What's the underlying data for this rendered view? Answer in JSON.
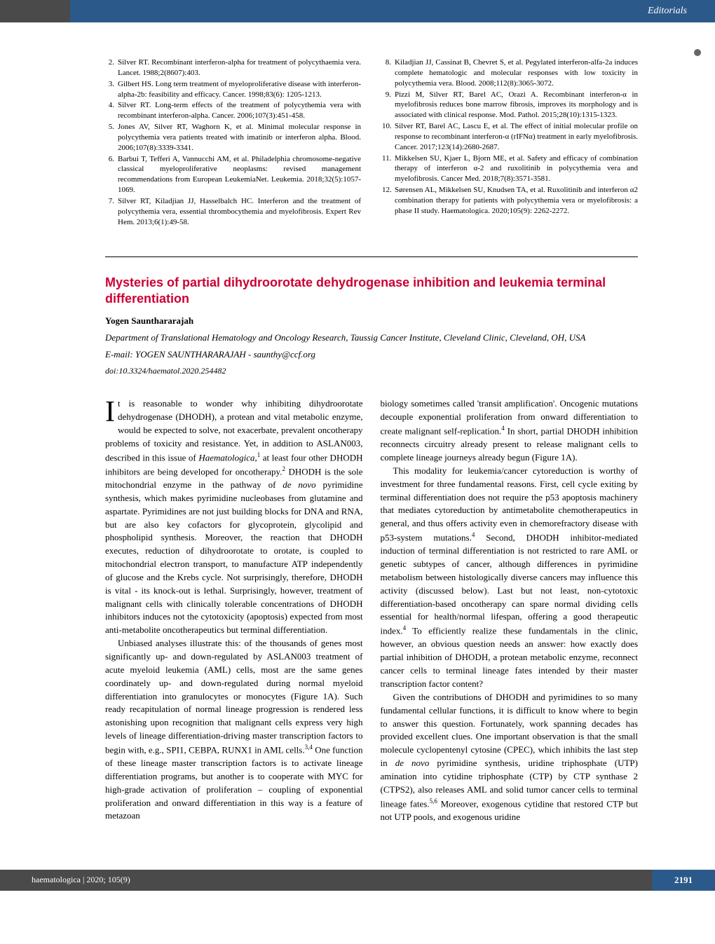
{
  "header": {
    "label": "Editorials"
  },
  "references_left": [
    {
      "num": "2.",
      "text": "Silver RT. Recombinant interferon-alpha for treatment of polycythaemia vera. Lancet. 1988;2(8607):403."
    },
    {
      "num": "3.",
      "text": "Gilbert HS. Long term treatment of myeloproliferative disease with interferon-alpha-2b: feasibility and efficacy. Cancer. 1998;83(6): 1205-1213."
    },
    {
      "num": "4.",
      "text": "Silver RT. Long-term effects of the treatment of polycythemia vera with recombinant interferon-alpha. Cancer. 2006;107(3):451-458."
    },
    {
      "num": "5.",
      "text": "Jones AV, Silver RT, Waghorn K, et al. Minimal molecular response in polycythemia vera patients treated with imatinib or interferon alpha. Blood. 2006;107(8):3339-3341."
    },
    {
      "num": "6.",
      "text": "Barbui T, Tefferi A, Vannucchi AM, et al. Philadelphia chromosome-negative classical myeloproliferative neoplasms: revised management recommendations from European LeukemiaNet. Leukemia. 2018;32(5):1057-1069."
    },
    {
      "num": "7.",
      "text": "Silver RT, Kiladjian JJ, Hasselbalch HC. Interferon and the treatment of polycythemia vera, essential thrombocythemia and myelofibrosis. Expert Rev Hem. 2013;6(1):49-58."
    }
  ],
  "references_right": [
    {
      "num": "8.",
      "text": "Kiladjian JJ, Cassinat B, Chevret S, et al. Pegylated interferon-alfa-2a induces complete hematologic and molecular responses with low toxicity in polycythemia vera. Blood. 2008;112(8):3065-3072."
    },
    {
      "num": "9.",
      "text": "Pizzi M, Silver RT, Barel AC, Orazi A. Recombinant interferon-α in myelofibrosis reduces bone marrow fibrosis, improves its morphology and is associated with clinical response. Mod. Pathol. 2015;28(10):1315-1323."
    },
    {
      "num": "10.",
      "text": "Silver RT, Barel AC, Lascu E, et al. The effect of initial molecular profile on response to recombinant interferon-α (rIFNα) treatment in early myelofibrosis. Cancer. 2017;123(14):2680-2687."
    },
    {
      "num": "11.",
      "text": "Mikkelsen SU, Kjaer L, Bjorn ME, et al. Safety and efficacy of combination therapy of interferon α-2 and ruxolitinib in polycythemia vera and myelofibrosis. Cancer Med. 2018;7(8):3571-3581."
    },
    {
      "num": "12.",
      "text": "Sørensen AL, Mikkelsen SU, Knudsen TA, et al. Ruxolitinib and interferon α2 combination therapy for patients with polycythemia vera or myelofibrosis: a phase II study. Haematologica. 2020;105(9): 2262-2272."
    }
  ],
  "article": {
    "title": "Mysteries of partial dihydroorotate dehydrogenase inhibition and leukemia terminal differentiation",
    "author": "Yogen Saunthararajah",
    "affiliation": "Department of Translational Hematology and Oncology Research, Taussig Cancer Institute, Cleveland Clinic, Cleveland, OH, USA",
    "email": "E-mail: YOGEN SAUNTHARARAJAH - saunthy@ccf.org",
    "doi": "doi:10.3324/haematol.2020.254482"
  },
  "footer": {
    "journal": "haematologica | 2020; 105(9)",
    "page": "2191"
  },
  "colors": {
    "header_bg": "#2b5a8a",
    "header_side": "#4a4a4a",
    "title_red": "#cc0033",
    "footer_left_bg": "#4a4a4a",
    "footer_right_bg": "#2b5a8a"
  }
}
